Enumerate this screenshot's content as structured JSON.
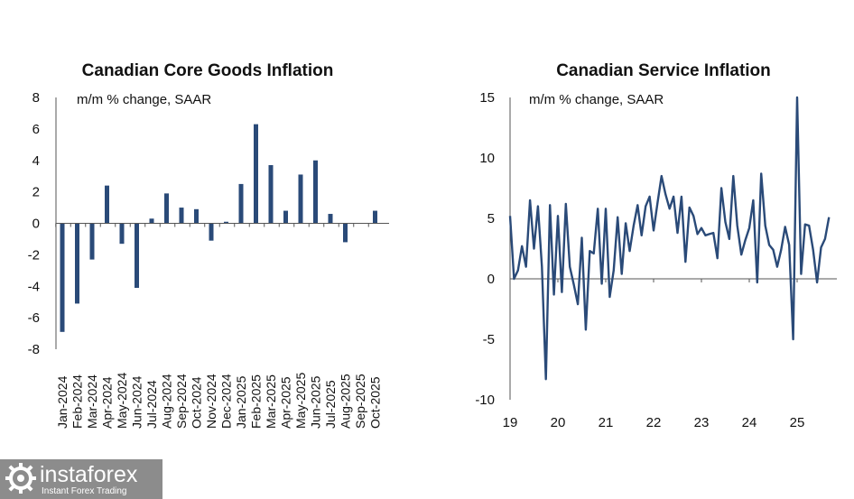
{
  "chart_data": [
    {
      "type": "bar",
      "title": "Canadian Core Goods Inflation",
      "subtitle": "m/m % change, SAAR",
      "ylim": [
        -8,
        8
      ],
      "yticks": [
        8,
        6,
        4,
        2,
        0,
        -2,
        -4,
        -6,
        -8
      ],
      "categories": [
        "Jan-2024",
        "Feb-2024",
        "Mar-2024",
        "Apr-2024",
        "May-2024",
        "Jun-2024",
        "Jul-2024",
        "Aug-2024",
        "Sep-2024",
        "Oct-2024",
        "Nov-2024",
        "Dec-2024",
        "Jan-2025",
        "Feb-2025",
        "Mar-2025",
        "Apr-2025",
        "May-2025",
        "Jun-2025",
        "Jul-2025",
        "Aug-2025",
        "Sep-2025",
        "Oct-2025"
      ],
      "values": [
        -6.9,
        -5.1,
        -2.3,
        2.4,
        -1.3,
        -4.1,
        0.3,
        1.9,
        1.0,
        0.9,
        -1.1,
        0.1,
        2.5,
        6.3,
        3.7,
        0.8,
        3.1,
        4.0,
        0.6,
        -1.2,
        0.0,
        0.8
      ],
      "color": "#2a4a78"
    },
    {
      "type": "line",
      "title": "Canadian Service Inflation",
      "subtitle": "m/m % change, SAAR",
      "ylim": [
        -10,
        15
      ],
      "yticks": [
        15,
        10,
        5,
        0,
        -5,
        -10
      ],
      "xticks": [
        "19",
        "20",
        "21",
        "22",
        "23",
        "24",
        "25"
      ],
      "x_start": 2019.0,
      "x_step": 0.08333,
      "values": [
        5.2,
        0.0,
        0.7,
        2.7,
        1.0,
        6.5,
        2.5,
        6.0,
        1.0,
        -8.3,
        6.1,
        -1.3,
        5.2,
        -1.1,
        6.2,
        1.0,
        -0.5,
        -2.1,
        3.4,
        -4.2,
        2.3,
        2.1,
        5.8,
        -0.4,
        5.8,
        -1.5,
        0.7,
        5.1,
        0.4,
        4.6,
        2.3,
        4.4,
        6.1,
        3.6,
        6.0,
        6.8,
        4.0,
        6.3,
        8.5,
        7.0,
        5.8,
        6.8,
        3.8,
        6.8,
        1.4,
        5.9,
        5.2,
        3.7,
        4.2,
        3.6,
        3.7,
        3.8,
        1.7,
        7.5,
        4.7,
        3.3,
        8.5,
        4.4,
        2.0,
        3.2,
        4.2,
        6.5,
        -0.3,
        8.7,
        4.4,
        2.8,
        2.4,
        1.0,
        2.4,
        4.3,
        2.8,
        -5.0,
        15.0,
        0.4,
        4.5,
        4.4,
        2.4,
        -0.3,
        2.6,
        3.3,
        5.1
      ],
      "color": "#2a4a78"
    }
  ],
  "branding": {
    "name": "instaforex",
    "tagline": "Instant Forex Trading"
  }
}
